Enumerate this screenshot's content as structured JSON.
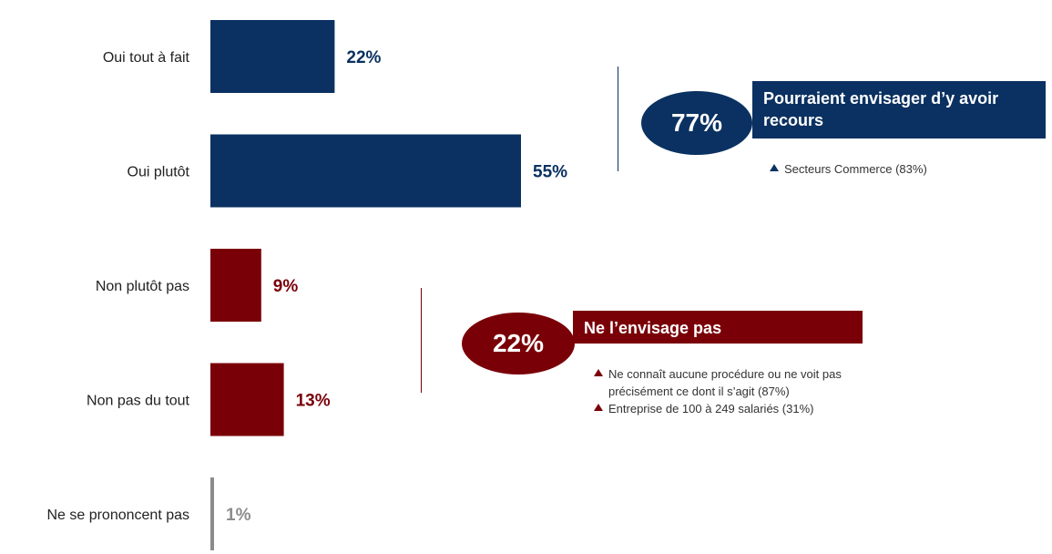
{
  "chart_data": {
    "type": "bar",
    "orientation": "horizontal",
    "categories": [
      "Oui tout à fait",
      "Oui plutôt",
      "Non plutôt pas",
      "Non pas du tout",
      "Ne se prononcent pas"
    ],
    "values": [
      22,
      55,
      9,
      13,
      1
    ],
    "value_labels": [
      "22%",
      "55%",
      "9%",
      "13%",
      "1%"
    ],
    "bar_colors": [
      "#0a3161",
      "#0a3161",
      "#7a0008",
      "#7a0008",
      "#8c8c8c"
    ],
    "xlim": [
      0,
      100
    ],
    "grid": false,
    "unit": "%"
  },
  "summaries": {
    "positive": {
      "value": "77%",
      "label": "Pourraient envisager d’y avoir recours",
      "color": "#0a3161",
      "notes": [
        "Secteurs Commerce (83%)"
      ]
    },
    "negative": {
      "value": "22%",
      "label": "Ne l’envisage pas",
      "color": "#7a0008",
      "notes": [
        "Ne connaît aucune procédure ou ne voit pas précisément ce dont il s’agit (87%)",
        "Entreprise de 100 à 249 salariés (31%)"
      ]
    }
  }
}
